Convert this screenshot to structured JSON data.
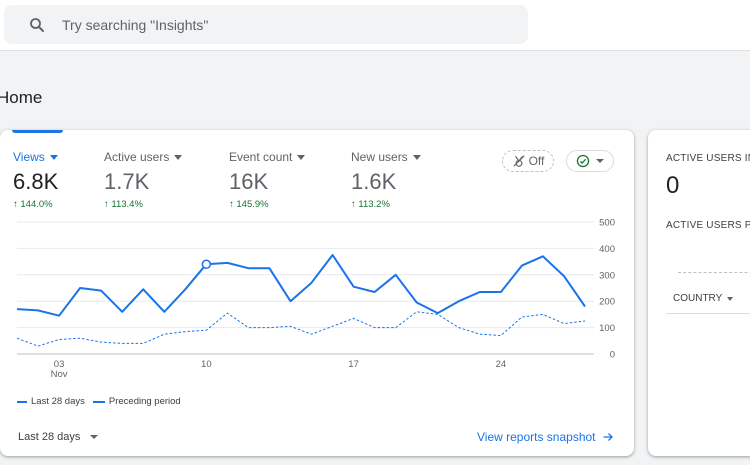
{
  "search": {
    "placeholder": "Try searching \"Insights\""
  },
  "page": {
    "title": "Home"
  },
  "metrics": [
    {
      "label": "Views",
      "value": "6.8K",
      "change": "↑ 144.0%"
    },
    {
      "label": "Active users",
      "value": "1.7K",
      "change": "↑ 113.4%"
    },
    {
      "label": "Event count",
      "value": "16K",
      "change": "↑ 145.9%"
    },
    {
      "label": "New users",
      "value": "1.6K",
      "change": "↑ 113.2%"
    }
  ],
  "controls": {
    "comparison_label": "Off",
    "date_range": "Last 28 days",
    "snapshot_link": "View reports snapshot"
  },
  "colors": {
    "accent": "#1a73e8",
    "positive": "#137333"
  },
  "icons": {
    "search": "search-icon",
    "comparison": "insights-off-icon",
    "status": "check-circle-icon",
    "link_arrow": "arrow-right-icon"
  },
  "chart_data": {
    "type": "line",
    "x": [
      1,
      2,
      3,
      4,
      5,
      6,
      7,
      8,
      9,
      10,
      11,
      12,
      13,
      14,
      15,
      16,
      17,
      18,
      19,
      20,
      21,
      22,
      23,
      24,
      25,
      26,
      27,
      28
    ],
    "xticks": [
      {
        "x": 3,
        "label": "03",
        "sublabel": "Nov"
      },
      {
        "x": 10,
        "label": "10",
        "sublabel": ""
      },
      {
        "x": 17,
        "label": "17",
        "sublabel": ""
      },
      {
        "x": 24,
        "label": "24",
        "sublabel": ""
      }
    ],
    "yticks": [
      0,
      100,
      200,
      300,
      400,
      500
    ],
    "ylim": [
      0,
      500
    ],
    "highlight_index": 9,
    "series": [
      {
        "name": "Last 28 days",
        "style": "solid",
        "values": [
          170,
          165,
          145,
          250,
          240,
          160,
          245,
          160,
          245,
          340,
          345,
          325,
          325,
          200,
          270,
          375,
          255,
          235,
          300,
          195,
          155,
          200,
          235,
          235,
          335,
          370,
          295,
          180
        ]
      },
      {
        "name": "Preceding period",
        "style": "dashed",
        "values": [
          60,
          30,
          55,
          60,
          45,
          40,
          40,
          75,
          85,
          90,
          155,
          100,
          100,
          105,
          75,
          105,
          135,
          100,
          100,
          160,
          150,
          100,
          75,
          70,
          140,
          150,
          115,
          125
        ]
      }
    ]
  },
  "side_card": {
    "title": "ACTIVE USERS IN",
    "value": "0",
    "subtitle": "ACTIVE USERS PE",
    "column": "COUNTRY"
  }
}
